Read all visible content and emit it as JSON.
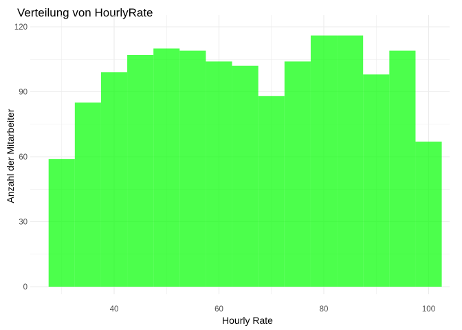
{
  "chart_data": {
    "type": "bar",
    "title": "Verteilung von HourlyRate",
    "xlabel": "Hourly Rate",
    "ylabel": "Anzahl der Mitarbeiter",
    "bins": [
      {
        "x0": 27.5,
        "x1": 32.5,
        "count": 59
      },
      {
        "x0": 32.5,
        "x1": 37.5,
        "count": 85
      },
      {
        "x0": 37.5,
        "x1": 42.5,
        "count": 99
      },
      {
        "x0": 42.5,
        "x1": 47.5,
        "count": 107
      },
      {
        "x0": 47.5,
        "x1": 52.5,
        "count": 110
      },
      {
        "x0": 52.5,
        "x1": 57.5,
        "count": 109
      },
      {
        "x0": 57.5,
        "x1": 62.5,
        "count": 104
      },
      {
        "x0": 62.5,
        "x1": 67.5,
        "count": 102
      },
      {
        "x0": 67.5,
        "x1": 72.5,
        "count": 88
      },
      {
        "x0": 72.5,
        "x1": 77.5,
        "count": 104
      },
      {
        "x0": 77.5,
        "x1": 82.5,
        "count": 116
      },
      {
        "x0": 82.5,
        "x1": 87.5,
        "count": 116
      },
      {
        "x0": 87.5,
        "x1": 92.5,
        "count": 98
      },
      {
        "x0": 92.5,
        "x1": 97.5,
        "count": 109
      },
      {
        "x0": 97.5,
        "x1": 102.5,
        "count": 67
      }
    ],
    "xlim": [
      24,
      104
    ],
    "ylim": [
      0,
      120
    ],
    "xticks": [
      40,
      60,
      80,
      100
    ],
    "yticks": [
      0,
      30,
      60,
      90,
      120
    ],
    "grid": true,
    "bar_color": "#00FF00",
    "bar_opacity": 0.7,
    "gridline_color": "#ebebeb"
  }
}
